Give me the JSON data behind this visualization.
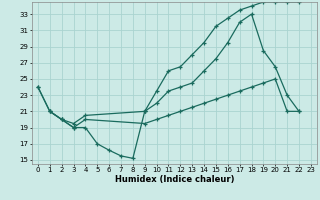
{
  "xlabel": "Humidex (Indice chaleur)",
  "bg_color": "#cceae6",
  "grid_color": "#aad4d0",
  "line_color": "#1a6b5e",
  "xlim": [
    -0.5,
    23.5
  ],
  "ylim": [
    14.5,
    34.5
  ],
  "yticks": [
    15,
    17,
    19,
    21,
    23,
    25,
    27,
    29,
    31,
    33
  ],
  "xticks": [
    0,
    1,
    2,
    3,
    4,
    5,
    6,
    7,
    8,
    9,
    10,
    11,
    12,
    13,
    14,
    15,
    16,
    17,
    18,
    19,
    20,
    21,
    22,
    23
  ],
  "line_dip_x": [
    0,
    1,
    2,
    3,
    4,
    5,
    6,
    7,
    8,
    9
  ],
  "line_dip_y": [
    24.0,
    21.0,
    20.0,
    19.0,
    19.0,
    17.0,
    16.2,
    15.5,
    15.2,
    21.0
  ],
  "line_upper_x": [
    9,
    10,
    11,
    12,
    13,
    14,
    15,
    16,
    17,
    18,
    19,
    20,
    21,
    22
  ],
  "line_upper_y": [
    21.0,
    23.5,
    26.0,
    26.5,
    28.0,
    29.5,
    31.5,
    32.5,
    33.5,
    34.0,
    34.5,
    34.5,
    34.5,
    34.5
  ],
  "line_mid_x": [
    0,
    1,
    2,
    3,
    4,
    9,
    10,
    11,
    12,
    13,
    14,
    15,
    16,
    17,
    18,
    19,
    20,
    21,
    22
  ],
  "line_mid_y": [
    24.0,
    21.0,
    20.0,
    19.5,
    20.5,
    21.0,
    22.0,
    23.5,
    24.0,
    24.5,
    26.0,
    27.5,
    29.5,
    32.0,
    33.0,
    28.5,
    26.5,
    23.0,
    21.0
  ],
  "line_flat_x": [
    1,
    2,
    3,
    4,
    9,
    10,
    11,
    12,
    13,
    14,
    15,
    16,
    17,
    18,
    19,
    20,
    21,
    22
  ],
  "line_flat_y": [
    21.0,
    20.0,
    19.0,
    20.0,
    19.5,
    20.0,
    20.5,
    21.0,
    21.5,
    22.0,
    22.5,
    23.0,
    23.5,
    24.0,
    24.5,
    25.0,
    21.0,
    21.0
  ]
}
